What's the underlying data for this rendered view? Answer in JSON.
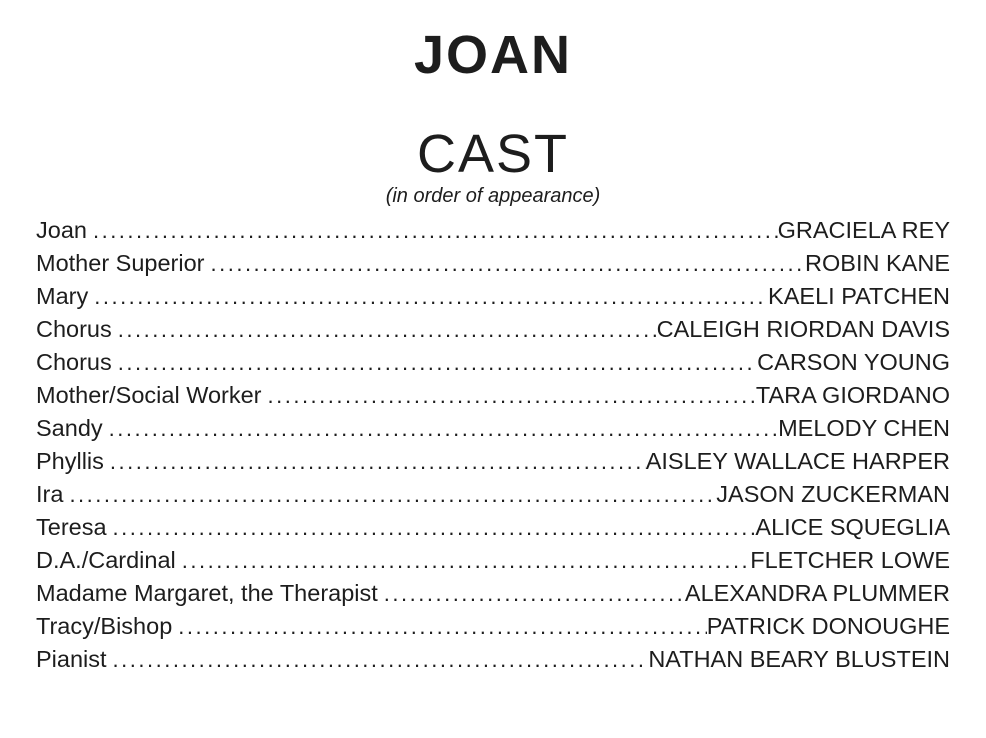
{
  "page": {
    "title": "JOAN",
    "section_heading": "CAST",
    "subtitle": "(in order of appearance)",
    "leader_char": ".",
    "text_color": "#1d1d1d",
    "background_color": "#ffffff"
  },
  "cast": [
    {
      "role": "Joan",
      "performer": "GRACIELA REY"
    },
    {
      "role": "Mother Superior",
      "performer": "ROBIN KANE"
    },
    {
      "role": "Mary",
      "performer": "KAELI PATCHEN"
    },
    {
      "role": "Chorus",
      "performer": "CALEIGH RIORDAN DAVIS"
    },
    {
      "role": "Chorus",
      "performer": "CARSON YOUNG"
    },
    {
      "role": "Mother/Social Worker",
      "performer": "TARA GIORDANO"
    },
    {
      "role": "Sandy",
      "performer": "MELODY CHEN"
    },
    {
      "role": "Phyllis",
      "performer": "AISLEY WALLACE HARPER"
    },
    {
      "role": "Ira",
      "performer": "JASON ZUCKERMAN"
    },
    {
      "role": "Teresa",
      "performer": "ALICE SQUEGLIA"
    },
    {
      "role": "D.A./Cardinal",
      "performer": "FLETCHER LOWE"
    },
    {
      "role": "Madame Margaret, the Therapist",
      "performer": "ALEXANDRA PLUMMER"
    },
    {
      "role": "Tracy/Bishop",
      "performer": "PATRICK DONOUGHE"
    },
    {
      "role": "Pianist",
      "performer": "NATHAN BEARY BLUSTEIN"
    }
  ]
}
